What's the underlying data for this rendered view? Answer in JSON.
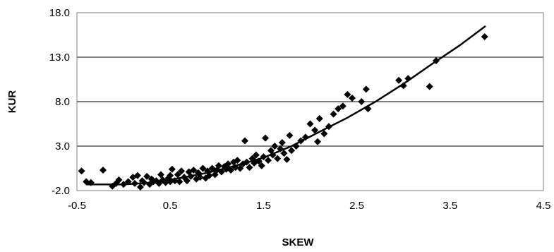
{
  "chart_data": {
    "type": "scatter",
    "title": "",
    "xlabel": "SKEW",
    "ylabel": "KUR",
    "xlim": [
      -0.5,
      4.5
    ],
    "ylim": [
      -2.0,
      18.0
    ],
    "x_ticks": [
      -0.5,
      0.5,
      1.5,
      2.5,
      3.5,
      4.5
    ],
    "x_tick_labels": [
      "-0.5",
      "0.5",
      "1.5",
      "2.5",
      "3.5",
      "4.5"
    ],
    "y_ticks": [
      -2.0,
      3.0,
      8.0,
      13.0,
      18.0
    ],
    "y_tick_labels": [
      "-2.0",
      "3.0",
      "8.0",
      "13.0",
      "18.0"
    ],
    "grid": "horizontal",
    "legend": "none",
    "colors": {
      "points": "#000000",
      "line": "#000000",
      "grid": "#000000",
      "frame": "#808080"
    },
    "series": [
      {
        "kind": "points",
        "marker": "diamond",
        "points": [
          [
            -0.45,
            0.2
          ],
          [
            -0.4,
            -1.0
          ],
          [
            -0.35,
            -1.1
          ],
          [
            -0.22,
            0.3
          ],
          [
            -0.12,
            -1.5
          ],
          [
            -0.08,
            -1.2
          ],
          [
            -0.05,
            -0.8
          ],
          [
            0.0,
            -1.3
          ],
          [
            0.05,
            -1.0
          ],
          [
            0.1,
            -0.5
          ],
          [
            0.12,
            -1.2
          ],
          [
            0.15,
            -0.3
          ],
          [
            0.18,
            -1.6
          ],
          [
            0.2,
            -0.9
          ],
          [
            0.22,
            -1.1
          ],
          [
            0.25,
            -0.4
          ],
          [
            0.28,
            -1.3
          ],
          [
            0.3,
            -0.7
          ],
          [
            0.32,
            -1.0
          ],
          [
            0.35,
            -0.9
          ],
          [
            0.38,
            -1.2
          ],
          [
            0.4,
            -0.2
          ],
          [
            0.42,
            -0.8
          ],
          [
            0.45,
            -1.1
          ],
          [
            0.48,
            -0.6
          ],
          [
            0.5,
            -0.3
          ],
          [
            0.5,
            -1.0
          ],
          [
            0.52,
            0.4
          ],
          [
            0.55,
            -0.9
          ],
          [
            0.58,
            -0.2
          ],
          [
            0.6,
            -1.0
          ],
          [
            0.62,
            0.2
          ],
          [
            0.65,
            -0.5
          ],
          [
            0.68,
            -0.9
          ],
          [
            0.7,
            0.1
          ],
          [
            0.72,
            -0.4
          ],
          [
            0.75,
            0.3
          ],
          [
            0.78,
            -0.7
          ],
          [
            0.8,
            0.0
          ],
          [
            0.82,
            -0.5
          ],
          [
            0.85,
            0.5
          ],
          [
            0.88,
            -0.6
          ],
          [
            0.9,
            0.2
          ],
          [
            0.92,
            -0.3
          ],
          [
            0.95,
            0.5
          ],
          [
            0.98,
            -0.2
          ],
          [
            1.0,
            0.3
          ],
          [
            1.02,
            0.8
          ],
          [
            1.05,
            0.1
          ],
          [
            1.08,
            0.7
          ],
          [
            1.1,
            0.4
          ],
          [
            1.12,
            1.0
          ],
          [
            1.15,
            0.3
          ],
          [
            1.18,
            1.2
          ],
          [
            1.2,
            0.6
          ],
          [
            1.22,
            1.4
          ],
          [
            1.25,
            0.5
          ],
          [
            1.28,
            1.0
          ],
          [
            1.3,
            3.6
          ],
          [
            1.32,
            1.2
          ],
          [
            1.35,
            0.6
          ],
          [
            1.38,
            1.6
          ],
          [
            1.4,
            1.1
          ],
          [
            1.42,
            2.0
          ],
          [
            1.45,
            1.3
          ],
          [
            1.48,
            0.8
          ],
          [
            1.5,
            1.8
          ],
          [
            1.52,
            3.9
          ],
          [
            1.55,
            1.4
          ],
          [
            1.58,
            2.5
          ],
          [
            1.6,
            2.0
          ],
          [
            1.62,
            3.0
          ],
          [
            1.65,
            1.6
          ],
          [
            1.68,
            2.7
          ],
          [
            1.7,
            3.4
          ],
          [
            1.72,
            2.2
          ],
          [
            1.75,
            1.5
          ],
          [
            1.78,
            4.2
          ],
          [
            1.8,
            2.5
          ],
          [
            1.85,
            3.0
          ],
          [
            1.9,
            3.6
          ],
          [
            1.95,
            4.0
          ],
          [
            2.0,
            5.5
          ],
          [
            2.05,
            4.8
          ],
          [
            2.08,
            3.5
          ],
          [
            2.1,
            6.1
          ],
          [
            2.15,
            4.4
          ],
          [
            2.2,
            5.2
          ],
          [
            2.25,
            6.6
          ],
          [
            2.3,
            7.2
          ],
          [
            2.35,
            7.5
          ],
          [
            2.4,
            8.8
          ],
          [
            2.45,
            8.4
          ],
          [
            2.55,
            8.0
          ],
          [
            2.6,
            9.4
          ],
          [
            2.62,
            7.2
          ],
          [
            2.95,
            10.4
          ],
          [
            3.0,
            9.8
          ],
          [
            3.05,
            10.6
          ],
          [
            3.28,
            9.7
          ],
          [
            3.35,
            12.6
          ],
          [
            3.87,
            15.3
          ]
        ]
      },
      {
        "kind": "line",
        "points": [
          [
            -0.4,
            -1.3
          ],
          [
            0.0,
            -1.3
          ],
          [
            0.3,
            -1.1
          ],
          [
            0.6,
            -0.6
          ],
          [
            0.9,
            0.0
          ],
          [
            1.2,
            0.8
          ],
          [
            1.5,
            1.7
          ],
          [
            1.8,
            3.0
          ],
          [
            2.1,
            4.6
          ],
          [
            2.4,
            6.2
          ],
          [
            2.7,
            8.0
          ],
          [
            3.0,
            10.0
          ],
          [
            3.3,
            12.2
          ],
          [
            3.6,
            14.3
          ],
          [
            3.88,
            16.5
          ]
        ]
      }
    ]
  }
}
